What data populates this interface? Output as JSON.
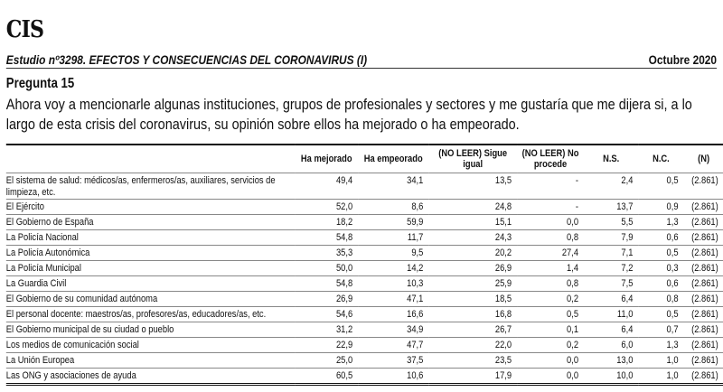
{
  "logo": "CIS",
  "study_title": "Estudio nº3298. EFECTOS Y CONSECUENCIAS DEL CORONAVIRUS (I)",
  "date": "Octubre 2020",
  "question_label": "Pregunta 15",
  "question_text": "Ahora voy a mencionarle algunas instituciones, grupos de profesionales y sectores y me gustaría que me dijera si, a lo largo de esta crisis del coronavirus, su opinión sobre ellos ha mejorado o ha empeorado.",
  "table": {
    "headers": [
      "",
      "Ha mejorado",
      "Ha empeorado",
      "(NO LEER) Sigue igual",
      "(NO LEER) No procede",
      "N.S.",
      "N.C.",
      "(N)"
    ],
    "rows": [
      [
        "El sistema de salud: médicos/as, enfermeros/as, auxiliares, servicios de limpieza, etc.",
        "49,4",
        "34,1",
        "13,5",
        "-",
        "2,4",
        "0,5",
        "(2.861)"
      ],
      [
        "El Ejército",
        "52,0",
        "8,6",
        "24,8",
        "-",
        "13,7",
        "0,9",
        "(2.861)"
      ],
      [
        "El Gobierno de España",
        "18,2",
        "59,9",
        "15,1",
        "0,0",
        "5,5",
        "1,3",
        "(2.861)"
      ],
      [
        "La Policía Nacional",
        "54,8",
        "11,7",
        "24,3",
        "0,8",
        "7,9",
        "0,6",
        "(2.861)"
      ],
      [
        "La Policía Autonómica",
        "35,3",
        "9,5",
        "20,2",
        "27,4",
        "7,1",
        "0,5",
        "(2.861)"
      ],
      [
        "La Policía Municipal",
        "50,0",
        "14,2",
        "26,9",
        "1,4",
        "7,2",
        "0,3",
        "(2.861)"
      ],
      [
        "La Guardia Civil",
        "54,8",
        "10,3",
        "25,9",
        "0,8",
        "7,5",
        "0,6",
        "(2.861)"
      ],
      [
        "El Gobierno de su comunidad autónoma",
        "26,9",
        "47,1",
        "18,5",
        "0,2",
        "6,4",
        "0,8",
        "(2.861)"
      ],
      [
        "El personal docente: maestros/as, profesores/as, educadores/as, etc.",
        "54,6",
        "16,6",
        "16,8",
        "0,5",
        "11,0",
        "0,5",
        "(2.861)"
      ],
      [
        "El Gobierno municipal de su ciudad o pueblo",
        "31,2",
        "34,9",
        "26,7",
        "0,1",
        "6,4",
        "0,7",
        "(2.861)"
      ],
      [
        "Los medios de comunicación social",
        "22,9",
        "47,7",
        "22,0",
        "0,2",
        "6,0",
        "1,3",
        "(2.861)"
      ],
      [
        "La Unión Europea",
        "25,0",
        "37,5",
        "23,5",
        "0,0",
        "13,0",
        "1,0",
        "(2.861)"
      ],
      [
        "Las ONG y asociaciones de ayuda",
        "60,5",
        "10,6",
        "17,9",
        "0,0",
        "10,0",
        "1,0",
        "(2.861)"
      ]
    ]
  }
}
